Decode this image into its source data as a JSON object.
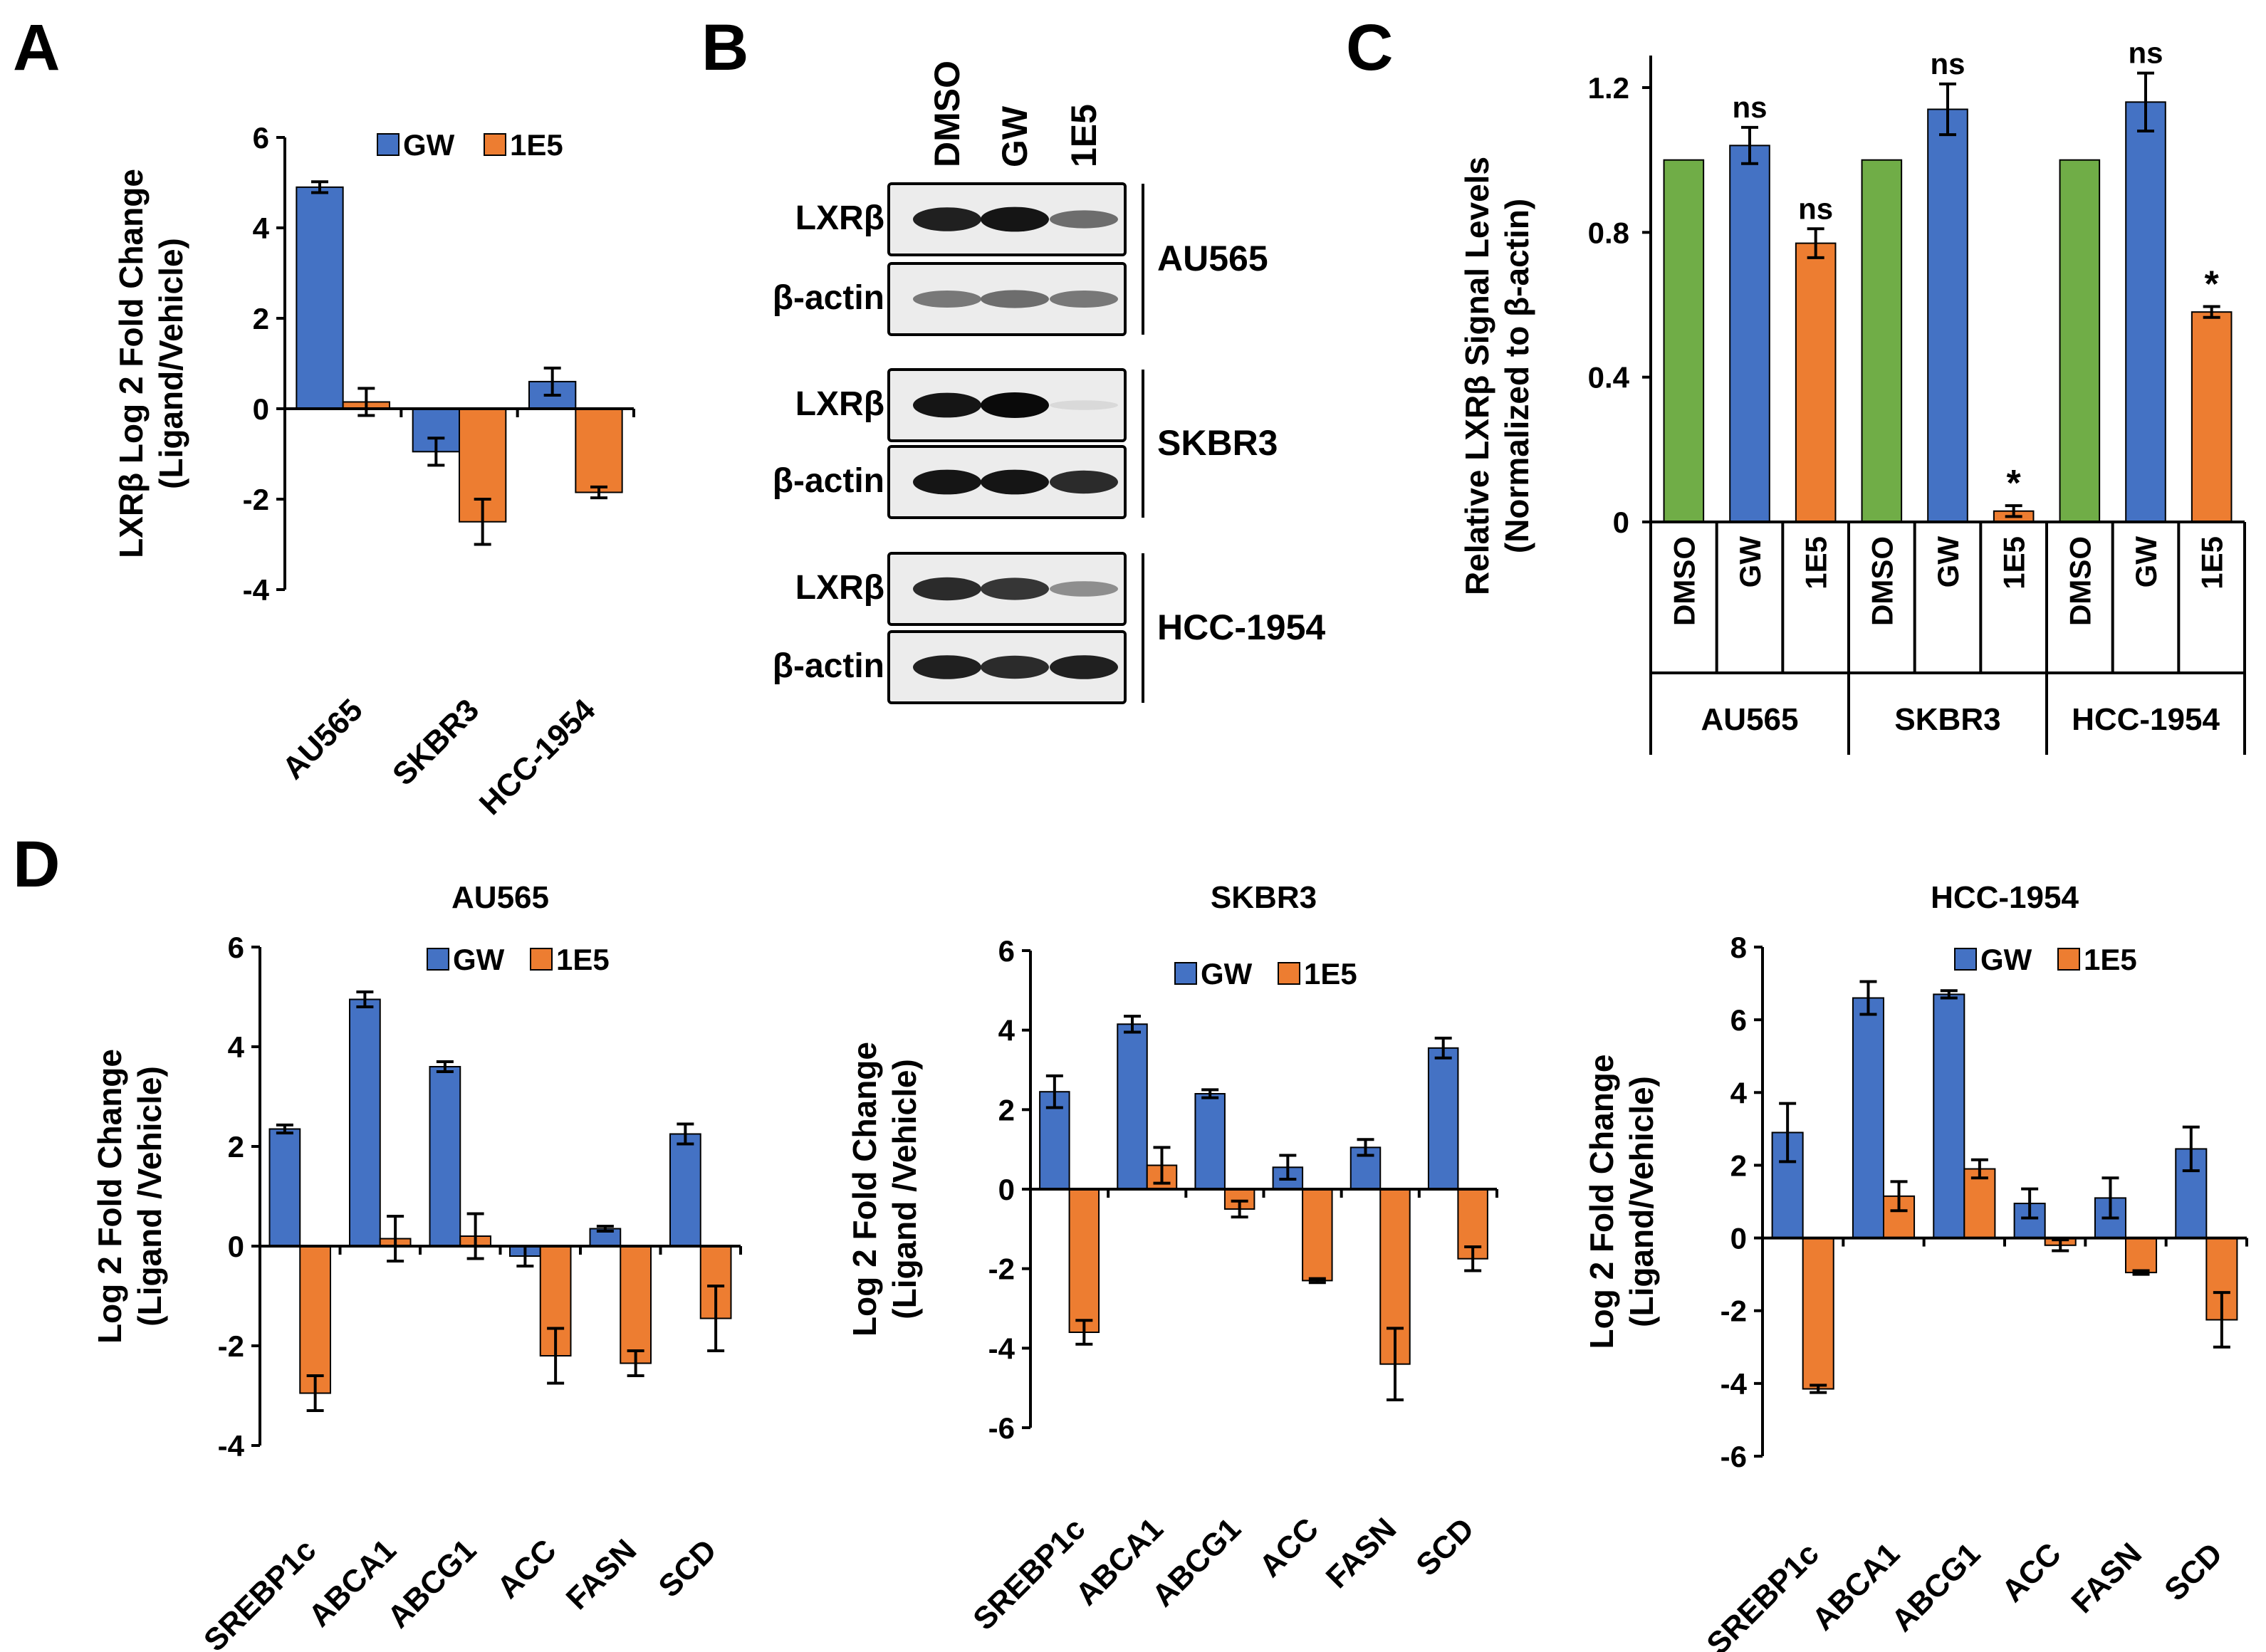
{
  "colors": {
    "gw": "#4472C4",
    "e15": "#ED7D31",
    "dmso": "#70AD47",
    "axis": "#000000"
  },
  "panels": {
    "A": {
      "letter": "A"
    },
    "B": {
      "letter": "B",
      "lanes": [
        "DMSO",
        "GW",
        "1E5"
      ],
      "lxr_label": "LXRβ",
      "actin_label": "β-actin",
      "groups": [
        "AU565",
        "SKBR3",
        "HCC-1954"
      ],
      "lxr_intensity": [
        [
          0.9,
          0.95,
          0.55
        ],
        [
          0.95,
          1.0,
          0.06
        ],
        [
          0.85,
          0.8,
          0.4
        ]
      ],
      "actin_intensity": [
        [
          0.5,
          0.55,
          0.5
        ],
        [
          0.95,
          0.95,
          0.85
        ],
        [
          0.9,
          0.85,
          0.9
        ]
      ]
    },
    "C": {
      "letter": "C"
    },
    "D": {
      "letter": "D"
    }
  },
  "chart_data": [
    {
      "id": "A",
      "type": "bar",
      "title": "",
      "ylabel_line1": "LXRβ Log 2 Fold Change",
      "ylabel_line2": "(Ligand/Vehicle)",
      "categories": [
        "AU565",
        "SKBR3",
        "HCC-1954"
      ],
      "series": [
        {
          "name": "GW",
          "color_key": "gw",
          "values": [
            4.9,
            -0.95,
            0.6
          ],
          "errors": [
            0.12,
            0.3,
            0.3
          ]
        },
        {
          "name": "1E5",
          "color_key": "e15",
          "values": [
            0.15,
            -2.5,
            -1.85
          ],
          "errors": [
            0.3,
            0.5,
            0.12
          ]
        }
      ],
      "ylim": [
        -4,
        6
      ],
      "yticks": [
        -4,
        -2,
        0,
        2,
        4,
        6
      ],
      "ytick_labels": [
        "-4",
        "-2",
        "0",
        "2",
        "4",
        "6"
      ],
      "legend": "top-right"
    },
    {
      "id": "C",
      "type": "bar",
      "title": "",
      "ylabel_line1": "Relative LXRβ Signal Levels",
      "ylabel_line2": "(Normalized to β-actin)",
      "groups": [
        "AU565",
        "SKBR3",
        "HCC-1954"
      ],
      "bars": [
        {
          "group": 0,
          "label": "DMSO",
          "color_key": "dmso",
          "value": 1.0,
          "error": 0,
          "annotation": ""
        },
        {
          "group": 0,
          "label": "GW",
          "color_key": "gw",
          "value": 1.04,
          "error": 0.05,
          "annotation": "ns"
        },
        {
          "group": 0,
          "label": "1E5",
          "color_key": "e15",
          "value": 0.77,
          "error": 0.04,
          "annotation": "ns"
        },
        {
          "group": 1,
          "label": "DMSO",
          "color_key": "dmso",
          "value": 1.0,
          "error": 0,
          "annotation": ""
        },
        {
          "group": 1,
          "label": "GW",
          "color_key": "gw",
          "value": 1.14,
          "error": 0.07,
          "annotation": "ns"
        },
        {
          "group": 1,
          "label": "1E5",
          "color_key": "e15",
          "value": 0.03,
          "error": 0.015,
          "annotation": "*"
        },
        {
          "group": 2,
          "label": "DMSO",
          "color_key": "dmso",
          "value": 1.0,
          "error": 0,
          "annotation": ""
        },
        {
          "group": 2,
          "label": "GW",
          "color_key": "gw",
          "value": 1.16,
          "error": 0.08,
          "annotation": "ns"
        },
        {
          "group": 2,
          "label": "1E5",
          "color_key": "e15",
          "value": 0.58,
          "error": 0.015,
          "annotation": "*"
        }
      ],
      "ylim": [
        0,
        1.2
      ],
      "yticks": [
        0,
        0.4,
        0.8,
        1.2
      ],
      "ytick_labels": [
        "0",
        "0.4",
        "0.8",
        "1.2"
      ]
    },
    {
      "id": "D1",
      "type": "bar",
      "title": "AU565",
      "ylabel_line1": "Log 2 Fold Change",
      "ylabel_line2": "(Ligand /Vehicle)",
      "categories": [
        "SREBP1c",
        "ABCA1",
        "ABCG1",
        "ACC",
        "FASN",
        "SCD"
      ],
      "series": [
        {
          "name": "GW",
          "color_key": "gw",
          "values": [
            2.35,
            4.95,
            3.6,
            -0.2,
            0.35,
            2.25
          ],
          "errors": [
            0.08,
            0.15,
            0.1,
            0.2,
            0.05,
            0.2
          ]
        },
        {
          "name": "1E5",
          "color_key": "e15",
          "values": [
            -2.95,
            0.15,
            0.2,
            -2.2,
            -2.35,
            -1.45
          ],
          "errors": [
            0.35,
            0.45,
            0.45,
            0.55,
            0.25,
            0.65
          ]
        }
      ],
      "ylim": [
        -4,
        6
      ],
      "yticks": [
        -4,
        -2,
        0,
        2,
        4,
        6
      ],
      "ytick_labels": [
        "-4",
        "-2",
        "0",
        "2",
        "4",
        "6"
      ],
      "legend": "top-right"
    },
    {
      "id": "D2",
      "type": "bar",
      "title": "SKBR3",
      "ylabel_line1": "Log 2 Fold Change",
      "ylabel_line2": "(Ligand /Vehicle)",
      "categories": [
        "SREBP1c",
        "ABCA1",
        "ABCG1",
        "ACC",
        "FASN",
        "SCD"
      ],
      "series": [
        {
          "name": "GW",
          "color_key": "gw",
          "values": [
            2.45,
            4.15,
            2.4,
            0.55,
            1.05,
            3.55
          ],
          "errors": [
            0.4,
            0.2,
            0.1,
            0.3,
            0.2,
            0.25
          ]
        },
        {
          "name": "1E5",
          "color_key": "e15",
          "values": [
            -3.6,
            0.6,
            -0.5,
            -2.3,
            -4.4,
            -1.75
          ],
          "errors": [
            0.3,
            0.45,
            0.2,
            0.05,
            0.9,
            0.3
          ]
        }
      ],
      "ylim": [
        -6,
        6
      ],
      "yticks": [
        -6,
        -4,
        -2,
        0,
        2,
        4,
        6
      ],
      "ytick_labels": [
        "-6",
        "-4",
        "-2",
        "0",
        "2",
        "4",
        "6"
      ],
      "legend": "top-right"
    },
    {
      "id": "D3",
      "type": "bar",
      "title": "HCC-1954",
      "ylabel_line1": "Log 2 Fold Change",
      "ylabel_line2": "(Ligand/Vehicle)",
      "categories": [
        "SREBP1c",
        "ABCA1",
        "ABCG1",
        "ACC",
        "FASN",
        "SCD"
      ],
      "series": [
        {
          "name": "GW",
          "color_key": "gw",
          "values": [
            2.9,
            6.6,
            6.7,
            0.95,
            1.1,
            2.45
          ],
          "errors": [
            0.8,
            0.45,
            0.1,
            0.4,
            0.55,
            0.6
          ]
        },
        {
          "name": "1E5",
          "color_key": "e15",
          "values": [
            -4.15,
            1.15,
            1.9,
            -0.2,
            -0.95,
            -2.25
          ],
          "errors": [
            0.1,
            0.4,
            0.25,
            0.15,
            0.05,
            0.75
          ]
        }
      ],
      "ylim": [
        -6,
        8
      ],
      "yticks": [
        -6,
        -4,
        -2,
        0,
        2,
        4,
        6,
        8
      ],
      "ytick_labels": [
        "-6",
        "-4",
        "-2",
        "0",
        "2",
        "4",
        "6",
        "8"
      ],
      "legend": "top-right"
    }
  ]
}
